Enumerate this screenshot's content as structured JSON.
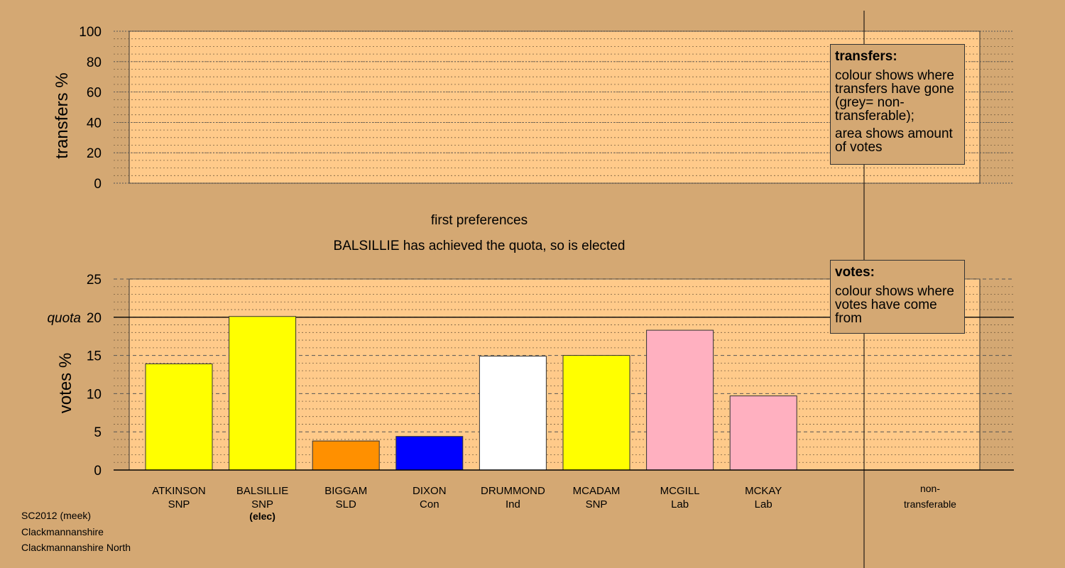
{
  "chart_data": [
    {
      "type": "bar",
      "ylabel": "transfers %",
      "ylim": [
        0,
        100
      ],
      "yticks": [
        0,
        20,
        40,
        60,
        80,
        100
      ],
      "values": []
    },
    {
      "type": "bar",
      "ylabel": "votes %",
      "ylim": [
        0,
        25
      ],
      "yticks": [
        0,
        5,
        10,
        15,
        20,
        25
      ],
      "quota": 20,
      "quota_label": "quota",
      "categories": [
        {
          "name": "ATKINSON",
          "party": "SNP",
          "note": ""
        },
        {
          "name": "BALSILLIE",
          "party": "SNP",
          "note": "(elec)"
        },
        {
          "name": "BIGGAM",
          "party": "SLD",
          "note": ""
        },
        {
          "name": "DIXON",
          "party": "Con",
          "note": ""
        },
        {
          "name": "DRUMMOND",
          "party": "Ind",
          "note": ""
        },
        {
          "name": "MCADAM",
          "party": "SNP",
          "note": ""
        },
        {
          "name": "MCGILL",
          "party": "Lab",
          "note": ""
        },
        {
          "name": "MCKAY",
          "party": "Lab",
          "note": ""
        }
      ],
      "values": [
        13.9,
        20.1,
        3.8,
        4.4,
        14.9,
        15.0,
        18.3,
        9.7
      ],
      "colors": [
        "#ffff00",
        "#ffff00",
        "#ff9000",
        "#0000ff",
        "#ffffff",
        "#ffff00",
        "#ffb0c0",
        "#ffb0c0"
      ],
      "extra_category": {
        "line1": "non-",
        "line2": "transferable"
      }
    }
  ],
  "stage_title": "first preferences",
  "stage_message": "BALSILLIE has achieved the quota, so is elected",
  "legend_transfers": {
    "heading": "transfers:",
    "text1": "colour shows where transfers have gone (grey= non-transferable);",
    "text2": "area shows amount of votes"
  },
  "legend_votes": {
    "heading": "votes:",
    "text1": "colour shows where votes have come from"
  },
  "footer": {
    "line1": "SC2012 (meek)",
    "line2": "Clackmannanshire",
    "line3": "Clackmannanshire North"
  },
  "colors": {
    "background": "#d4a873",
    "plot_area": "#ffca8a"
  }
}
